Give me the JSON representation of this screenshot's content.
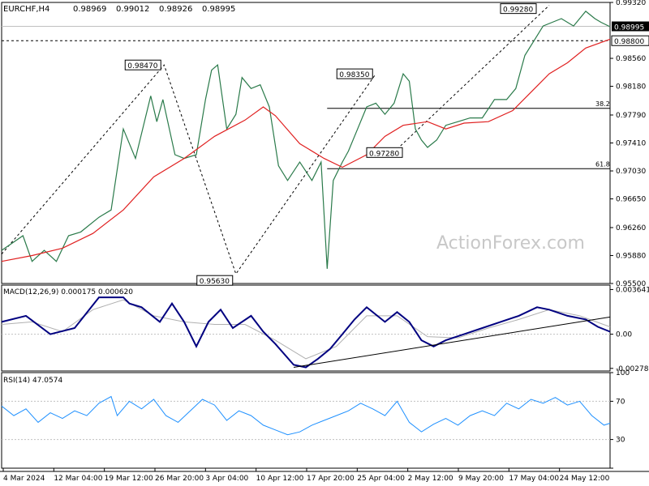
{
  "chart_data": {
    "type": "line",
    "symbol_header": "EURCHF,H4",
    "ohlc_header": [
      "0.98969",
      "0.99012",
      "0.98926",
      "0.98995"
    ],
    "watermark": "ActionForex.com",
    "colors": {
      "price": "#2a7a4a",
      "ma": "#e02020",
      "macd": "#000080",
      "signal": "#b0b0b0",
      "rsi": "#1e90ff",
      "dashed": "#000000"
    },
    "x_tick_labels": [
      "4 Mar 2024",
      "12 Mar 04:00",
      "19 Mar 12:00",
      "26 Mar 20:00",
      "3 Apr 04:00",
      "10 Apr 12:00",
      "17 Apr 20:00",
      "25 Apr 04:00",
      "2 May 12:00",
      "9 May 20:00",
      "17 May 04:00",
      "24 May 12:00"
    ],
    "price_panel": {
      "y_ticks": [
        "0.99320",
        "0.98560",
        "0.98180",
        "0.97790",
        "0.97410",
        "0.97030",
        "0.96650",
        "0.96260",
        "0.95880",
        "0.95500"
      ],
      "ylim": [
        0.955,
        0.9932
      ],
      "current_price": "0.98995",
      "dashed_level": "0.98800",
      "annotations": [
        {
          "label": "0.95630",
          "value": 0.9563,
          "t": 0.385
        },
        {
          "label": "0.98470",
          "value": 0.9847,
          "t": 0.267
        },
        {
          "label": "0.98350",
          "value": 0.9835,
          "t": 0.615
        },
        {
          "label": "0.97280",
          "value": 0.9728,
          "t": 0.664
        },
        {
          "label": "0.99280",
          "value": 0.9928,
          "t": 0.9
        }
      ],
      "fib_levels": [
        {
          "label": "38.2",
          "value": 0.9788
        },
        {
          "label": "61.8",
          "value": 0.9706
        }
      ],
      "price_path": [
        [
          0.0,
          0.9595
        ],
        [
          0.035,
          0.9615
        ],
        [
          0.05,
          0.958
        ],
        [
          0.07,
          0.9595
        ],
        [
          0.09,
          0.958
        ],
        [
          0.11,
          0.9615
        ],
        [
          0.13,
          0.962
        ],
        [
          0.16,
          0.964
        ],
        [
          0.18,
          0.965
        ],
        [
          0.2,
          0.976
        ],
        [
          0.22,
          0.972
        ],
        [
          0.245,
          0.9805
        ],
        [
          0.255,
          0.977
        ],
        [
          0.265,
          0.98
        ],
        [
          0.285,
          0.9725
        ],
        [
          0.3,
          0.972
        ],
        [
          0.32,
          0.9725
        ],
        [
          0.335,
          0.98
        ],
        [
          0.345,
          0.984
        ],
        [
          0.355,
          0.9847
        ],
        [
          0.37,
          0.976
        ],
        [
          0.385,
          0.978
        ],
        [
          0.395,
          0.983
        ],
        [
          0.41,
          0.9815
        ],
        [
          0.425,
          0.982
        ],
        [
          0.44,
          0.979
        ],
        [
          0.455,
          0.971
        ],
        [
          0.47,
          0.969
        ],
        [
          0.49,
          0.9715
        ],
        [
          0.51,
          0.969
        ],
        [
          0.525,
          0.9715
        ],
        [
          0.535,
          0.957
        ],
        [
          0.545,
          0.969
        ],
        [
          0.56,
          0.9715
        ],
        [
          0.57,
          0.973
        ],
        [
          0.585,
          0.976
        ],
        [
          0.6,
          0.979
        ],
        [
          0.615,
          0.9795
        ],
        [
          0.63,
          0.978
        ],
        [
          0.645,
          0.9795
        ],
        [
          0.66,
          0.9835
        ],
        [
          0.67,
          0.9825
        ],
        [
          0.68,
          0.976
        ],
        [
          0.69,
          0.9745
        ],
        [
          0.7,
          0.9735
        ],
        [
          0.715,
          0.9745
        ],
        [
          0.73,
          0.9765
        ],
        [
          0.75,
          0.977
        ],
        [
          0.77,
          0.9775
        ],
        [
          0.79,
          0.9775
        ],
        [
          0.81,
          0.98
        ],
        [
          0.83,
          0.98
        ],
        [
          0.845,
          0.9815
        ],
        [
          0.86,
          0.986
        ],
        [
          0.875,
          0.988
        ],
        [
          0.89,
          0.99
        ],
        [
          0.905,
          0.9905
        ],
        [
          0.92,
          0.991
        ],
        [
          0.94,
          0.99
        ],
        [
          0.96,
          0.992
        ],
        [
          0.975,
          0.991
        ],
        [
          0.985,
          0.9905
        ],
        [
          1.0,
          0.9899
        ]
      ],
      "ma_path": [
        [
          0.0,
          0.958
        ],
        [
          0.05,
          0.9588
        ],
        [
          0.1,
          0.9598
        ],
        [
          0.15,
          0.9618
        ],
        [
          0.2,
          0.965
        ],
        [
          0.25,
          0.9695
        ],
        [
          0.3,
          0.972
        ],
        [
          0.35,
          0.975
        ],
        [
          0.4,
          0.9772
        ],
        [
          0.43,
          0.979
        ],
        [
          0.45,
          0.9778
        ],
        [
          0.49,
          0.974
        ],
        [
          0.53,
          0.972
        ],
        [
          0.56,
          0.9708
        ],
        [
          0.6,
          0.9725
        ],
        [
          0.63,
          0.975
        ],
        [
          0.66,
          0.9765
        ],
        [
          0.7,
          0.977
        ],
        [
          0.73,
          0.976
        ],
        [
          0.76,
          0.9768
        ],
        [
          0.8,
          0.977
        ],
        [
          0.84,
          0.9785
        ],
        [
          0.87,
          0.981
        ],
        [
          0.9,
          0.9835
        ],
        [
          0.93,
          0.985
        ],
        [
          0.96,
          0.987
        ],
        [
          1.0,
          0.9882
        ]
      ]
    },
    "macd_panel": {
      "label": "MACD(12,26,9) 0.000175 0.000620",
      "y_ticks": [
        "0.003641",
        "0.00",
        "-0.002788"
      ],
      "ylim": [
        -0.003,
        0.004
      ],
      "macd_path": [
        [
          0.0,
          0.001
        ],
        [
          0.04,
          0.0015
        ],
        [
          0.08,
          0.0
        ],
        [
          0.12,
          0.0005
        ],
        [
          0.16,
          0.003
        ],
        [
          0.2,
          0.003
        ],
        [
          0.21,
          0.0025
        ],
        [
          0.23,
          0.0022
        ],
        [
          0.26,
          0.001
        ],
        [
          0.28,
          0.0025
        ],
        [
          0.3,
          0.001
        ],
        [
          0.32,
          -0.001
        ],
        [
          0.34,
          0.001
        ],
        [
          0.36,
          0.002
        ],
        [
          0.38,
          0.0005
        ],
        [
          0.41,
          0.0015
        ],
        [
          0.43,
          0.0002
        ],
        [
          0.45,
          -0.0008
        ],
        [
          0.48,
          -0.0025
        ],
        [
          0.5,
          -0.0027
        ],
        [
          0.52,
          -0.002
        ],
        [
          0.54,
          -0.0012
        ],
        [
          0.56,
          0.0
        ],
        [
          0.58,
          0.0012
        ],
        [
          0.6,
          0.0022
        ],
        [
          0.63,
          0.001
        ],
        [
          0.65,
          0.0018
        ],
        [
          0.67,
          0.001
        ],
        [
          0.69,
          -0.0005
        ],
        [
          0.71,
          -0.001
        ],
        [
          0.73,
          -0.0005
        ],
        [
          0.76,
          0.0
        ],
        [
          0.79,
          0.0005
        ],
        [
          0.82,
          0.001
        ],
        [
          0.85,
          0.0015
        ],
        [
          0.88,
          0.0022
        ],
        [
          0.9,
          0.002
        ],
        [
          0.93,
          0.0015
        ],
        [
          0.96,
          0.0012
        ],
        [
          0.98,
          0.0006
        ],
        [
          1.0,
          0.0002
        ]
      ],
      "signal_path": [
        [
          0.0,
          0.0008
        ],
        [
          0.05,
          0.001
        ],
        [
          0.1,
          0.0002
        ],
        [
          0.15,
          0.002
        ],
        [
          0.2,
          0.0028
        ],
        [
          0.25,
          0.0015
        ],
        [
          0.3,
          0.001
        ],
        [
          0.35,
          0.0008
        ],
        [
          0.4,
          0.0008
        ],
        [
          0.45,
          -0.0005
        ],
        [
          0.5,
          -0.002
        ],
        [
          0.55,
          -0.001
        ],
        [
          0.6,
          0.0015
        ],
        [
          0.65,
          0.0015
        ],
        [
          0.7,
          -0.0002
        ],
        [
          0.75,
          -0.0003
        ],
        [
          0.8,
          0.0005
        ],
        [
          0.85,
          0.0012
        ],
        [
          0.9,
          0.002
        ],
        [
          0.95,
          0.0015
        ],
        [
          1.0,
          0.0006
        ]
      ],
      "trend_line": [
        [
          0.48,
          -0.0027
        ],
        [
          1.0,
          0.0014
        ]
      ]
    },
    "rsi_panel": {
      "label": "RSI(14) 47.0574",
      "y_ticks": [
        "100",
        "70",
        "30",
        "0"
      ],
      "ylim": [
        0,
        100
      ],
      "levels": [
        70,
        30
      ],
      "rsi_path": [
        [
          0.0,
          65
        ],
        [
          0.02,
          55
        ],
        [
          0.04,
          62
        ],
        [
          0.06,
          48
        ],
        [
          0.08,
          58
        ],
        [
          0.1,
          52
        ],
        [
          0.12,
          60
        ],
        [
          0.14,
          55
        ],
        [
          0.16,
          68
        ],
        [
          0.18,
          75
        ],
        [
          0.19,
          55
        ],
        [
          0.21,
          70
        ],
        [
          0.23,
          62
        ],
        [
          0.25,
          72
        ],
        [
          0.27,
          55
        ],
        [
          0.29,
          48
        ],
        [
          0.31,
          60
        ],
        [
          0.33,
          72
        ],
        [
          0.35,
          66
        ],
        [
          0.37,
          50
        ],
        [
          0.39,
          60
        ],
        [
          0.41,
          55
        ],
        [
          0.43,
          45
        ],
        [
          0.45,
          40
        ],
        [
          0.47,
          35
        ],
        [
          0.49,
          38
        ],
        [
          0.51,
          45
        ],
        [
          0.53,
          50
        ],
        [
          0.55,
          55
        ],
        [
          0.57,
          60
        ],
        [
          0.59,
          68
        ],
        [
          0.61,
          62
        ],
        [
          0.63,
          55
        ],
        [
          0.65,
          70
        ],
        [
          0.67,
          48
        ],
        [
          0.69,
          38
        ],
        [
          0.71,
          46
        ],
        [
          0.73,
          52
        ],
        [
          0.75,
          45
        ],
        [
          0.77,
          55
        ],
        [
          0.79,
          60
        ],
        [
          0.81,
          55
        ],
        [
          0.83,
          68
        ],
        [
          0.85,
          62
        ],
        [
          0.87,
          72
        ],
        [
          0.89,
          68
        ],
        [
          0.91,
          74
        ],
        [
          0.93,
          66
        ],
        [
          0.95,
          70
        ],
        [
          0.97,
          55
        ],
        [
          0.99,
          45
        ],
        [
          1.0,
          47
        ]
      ]
    }
  }
}
